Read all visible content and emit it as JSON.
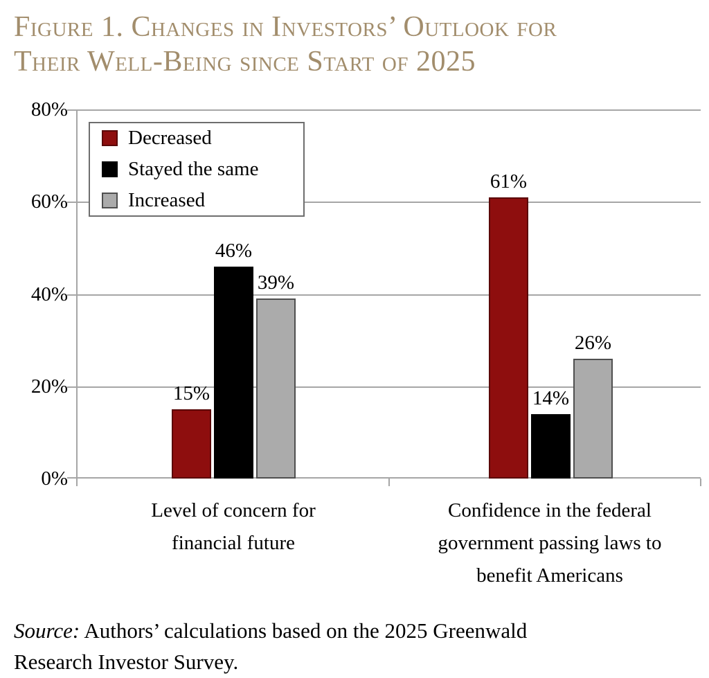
{
  "title": {
    "full": "Figure 1. Changes in Investors’ Outlook for Their Well-Being since Start of 2025",
    "line1": "Figure 1. Changes in Investors’ Outlook for",
    "line2": "Their Well-Being since Start of 2025",
    "color": "#a28d6c"
  },
  "chart_data": {
    "type": "bar",
    "grouped": true,
    "title": "Figure 1. Changes in Investors’ Outlook for Their Well-Being since Start of 2025",
    "categories": [
      "Level of concern for financial future",
      "Confidence in the federal government passing laws to benefit Americans"
    ],
    "categories_wrapped": [
      [
        "Level of concern for",
        "financial future"
      ],
      [
        "Confidence in the federal",
        "government passing laws to",
        "benefit Americans"
      ]
    ],
    "series": [
      {
        "name": "Decreased",
        "color": "#8e0e0e",
        "border": "#5a0808",
        "values": [
          15,
          61
        ]
      },
      {
        "name": "Stayed the same",
        "color": "#000000",
        "border": "#000000",
        "values": [
          46,
          14
        ]
      },
      {
        "name": "Increased",
        "color": "#ababab",
        "border": "#4f4f4f",
        "values": [
          39,
          26
        ]
      }
    ],
    "data_labels": [
      [
        "15%",
        "61%"
      ],
      [
        "46%",
        "14%"
      ],
      [
        "39%",
        "26%"
      ]
    ],
    "xlabel": "",
    "ylabel": "",
    "ylim": [
      0,
      80
    ],
    "yticks": [
      0,
      20,
      40,
      60,
      80
    ],
    "ytick_suffix": "%",
    "value_suffix": "%",
    "grid": true,
    "legend_position": "top-left-inside"
  },
  "source": {
    "prefix": "Source:",
    "line1": "Authors’ calculations based on the 2025 Greenwald",
    "line2": "Research Investor Survey."
  },
  "colors": {
    "axis": "#a6a6a6",
    "background": "#ffffff",
    "text": "#000000"
  }
}
